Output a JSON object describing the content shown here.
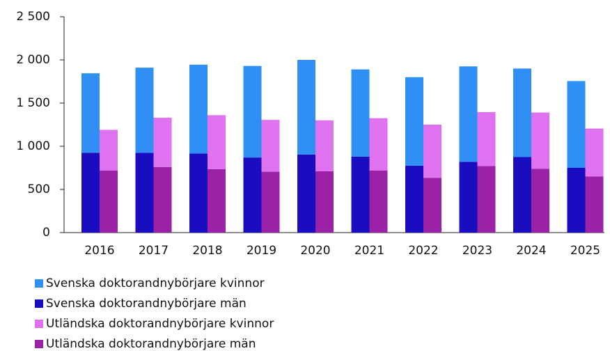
{
  "chart_data": {
    "type": "bar",
    "categories": [
      "2016",
      "2017",
      "2018",
      "2019",
      "2020",
      "2021",
      "2022",
      "2023",
      "2024",
      "2025"
    ],
    "series": [
      {
        "name": "Svenska doktorandnybörjare kvinnor",
        "color": "#2f8ff5",
        "values": [
          920,
          985,
          1030,
          1060,
          1095,
          1010,
          1025,
          1105,
          1025,
          1005
        ]
      },
      {
        "name": "Svenska doktorandnybörjare män",
        "color": "#1a0dbf",
        "values": [
          925,
          925,
          915,
          870,
          905,
          880,
          775,
          820,
          875,
          750
        ]
      },
      {
        "name": "Utländska doktorandnybörjare kvinnor",
        "color": "#df72ef",
        "values": [
          470,
          570,
          625,
          600,
          590,
          605,
          615,
          625,
          650,
          555
        ]
      },
      {
        "name": "Utländska doktorandnybörjare män",
        "color": "#9b22a6",
        "values": [
          720,
          760,
          735,
          705,
          710,
          720,
          635,
          770,
          740,
          650
        ]
      }
    ],
    "ylim": [
      0,
      2500
    ],
    "yticks": [
      0,
      500,
      {
        "value": 1000,
        "label": "1 000"
      },
      {
        "value": 1500,
        "label": "1 500"
      },
      {
        "value": 2000,
        "label": "2 000"
      },
      {
        "value": 2500,
        "label": "2 500"
      }
    ],
    "grid": false
  }
}
